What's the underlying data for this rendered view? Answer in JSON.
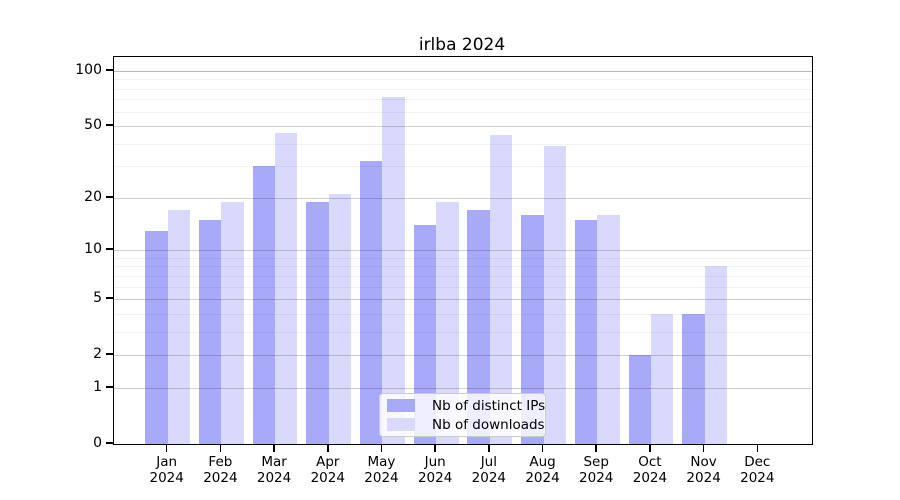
{
  "chart_data": {
    "type": "bar",
    "title": "irlba 2024",
    "categories": [
      "Jan",
      "Feb",
      "Mar",
      "Apr",
      "May",
      "Jun",
      "Jul",
      "Aug",
      "Sep",
      "Oct",
      "Nov",
      "Dec"
    ],
    "x_tick_year": "2024",
    "series": [
      {
        "name": "Nb of distinct IPs",
        "color": "#a9a9f9",
        "values": [
          13,
          15,
          30,
          19,
          32,
          14,
          17,
          16,
          15,
          2,
          4,
          0
        ]
      },
      {
        "name": "Nb of downloads",
        "color": "#d9d9fb",
        "values": [
          17,
          19,
          46,
          21,
          72,
          19,
          45,
          39,
          16,
          4,
          8,
          0
        ]
      }
    ],
    "y_axis": {
      "scale": "log1p",
      "ylim": [
        0,
        100
      ],
      "major_ticks": [
        100,
        50,
        20,
        10,
        5,
        2,
        1,
        0
      ],
      "minor_ticks": [
        3,
        4,
        6,
        7,
        8,
        9,
        30,
        40,
        60,
        70,
        80,
        90
      ]
    },
    "grid": "on",
    "legend_position": "bottom-center",
    "xlabel": "",
    "ylabel": ""
  },
  "colors": {
    "background": "#ffffff",
    "spine": "#000000",
    "bar_distinct_ips": "#a9a9f9",
    "bar_downloads": "#d9d9fb"
  }
}
